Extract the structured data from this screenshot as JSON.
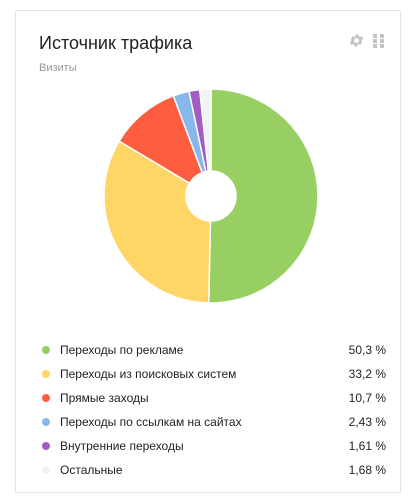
{
  "widget": {
    "title": "Источник трафика",
    "subtitle": "Визиты",
    "icons": [
      "gear-icon",
      "grid-drag-icon"
    ]
  },
  "chart_data": {
    "type": "pie",
    "donut": true,
    "categories": [
      "Переходы по рекламе",
      "Переходы из поисковых систем",
      "Прямые заходы",
      "Переходы по ссылкам на сайтах",
      "Внутренние переходы",
      "Остальные"
    ],
    "values": [
      50.3,
      33.2,
      10.7,
      2.43,
      1.61,
      1.68
    ],
    "value_labels": [
      "50,3 %",
      "33,2 %",
      "10,7 %",
      "2,43 %",
      "1,61 %",
      "1,68 %"
    ],
    "colors": [
      "#97cf62",
      "#ffd666",
      "#fd5c3e",
      "#87b8ec",
      "#a35cc1",
      "#f2f2f2"
    ],
    "legend_position": "bottom"
  }
}
